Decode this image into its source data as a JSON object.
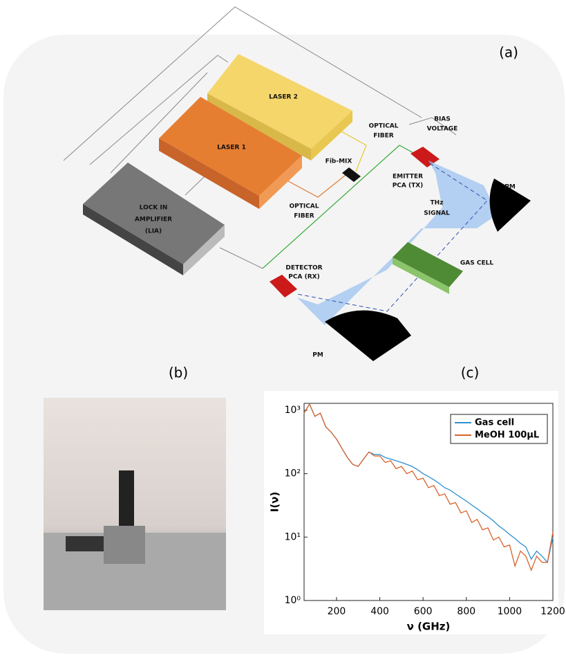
{
  "panels": {
    "a": "(a)",
    "b": "(b)",
    "c": "(c)"
  },
  "diagram": {
    "laser2": "LASER 2",
    "laser1": "LASER 1",
    "lia": [
      "LOCK IN",
      "AMPLIFIER",
      "(LIA)"
    ],
    "optical_fiber_top": [
      "OPTICAL",
      "FIBER"
    ],
    "bias": [
      "BIAS",
      "VOLTAGE"
    ],
    "fibmix": "Fib-MIX",
    "emitter": [
      "EMITTER",
      "PCA (TX)"
    ],
    "pm_right": "PM",
    "thz": [
      "THz",
      "SIGNAL"
    ],
    "optical_fiber_bottom": [
      "OPTICAL",
      "FIBER"
    ],
    "gas_cell": "GAS CELL",
    "detector": [
      "DETECTOR",
      "PCA (RX)"
    ],
    "pm_bottom": "PM"
  },
  "chart_data": {
    "type": "line",
    "xlabel": "ν (GHz)",
    "ylabel": "I(ν)",
    "log_y": true,
    "legend": "upper right",
    "xlim": [
      50,
      1200
    ],
    "xticks": [
      200,
      400,
      600,
      800,
      1000,
      1200
    ],
    "ylim": [
      1,
      1285
    ],
    "yticks": [
      {
        "value": 1,
        "label": "10⁰"
      },
      {
        "value": 10,
        "label": "10¹"
      },
      {
        "value": 100,
        "label": "10²"
      },
      {
        "value": 1000,
        "label": "10³"
      }
    ],
    "x": [
      50,
      75,
      100,
      125,
      150,
      175,
      200,
      225,
      250,
      275,
      300,
      325,
      350,
      375,
      400,
      425,
      450,
      475,
      500,
      525,
      550,
      575,
      600,
      625,
      650,
      675,
      700,
      725,
      750,
      775,
      800,
      825,
      850,
      875,
      900,
      925,
      950,
      975,
      1000,
      1025,
      1050,
      1075,
      1100,
      1125,
      1150,
      1175,
      1200
    ],
    "series": [
      {
        "name": "Gas cell",
        "color": "#2f8fcf",
        "values": [
          900,
          1250,
          800,
          900,
          550,
          450,
          350,
          250,
          180,
          140,
          130,
          170,
          220,
          200,
          200,
          180,
          170,
          160,
          150,
          140,
          130,
          115,
          100,
          90,
          80,
          70,
          60,
          55,
          48,
          42,
          37,
          32,
          28,
          24,
          21,
          18,
          15,
          13,
          11,
          9.5,
          8,
          7,
          4.5,
          6,
          5,
          4,
          10
        ]
      },
      {
        "name": "MeOH 100μL",
        "color": "#d9622b",
        "values": [
          900,
          1250,
          800,
          900,
          550,
          450,
          350,
          250,
          180,
          140,
          130,
          170,
          220,
          190,
          190,
          150,
          160,
          120,
          130,
          100,
          110,
          80,
          85,
          60,
          65,
          45,
          48,
          33,
          35,
          24,
          26,
          17,
          19,
          13,
          14,
          9,
          10,
          7,
          7.5,
          3.5,
          6,
          5,
          3,
          5,
          4,
          4,
          12
        ]
      }
    ]
  }
}
